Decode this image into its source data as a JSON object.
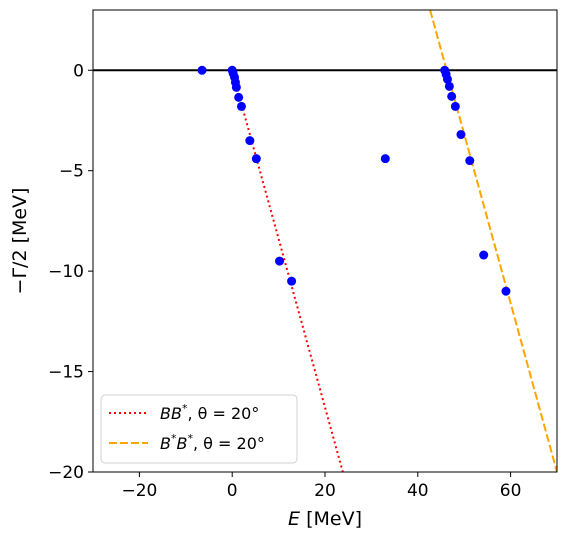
{
  "chart_data": {
    "type": "scatter",
    "xlabel": "E [MeV]",
    "ylabel": "−Γ/2 [MeV]",
    "xlim": [
      -30,
      70
    ],
    "ylim": [
      -20,
      3
    ],
    "xticks": [
      -20,
      0,
      20,
      40,
      60
    ],
    "yticks": [
      0,
      -5,
      -10,
      -15,
      -20
    ],
    "xtick_labels": [
      "−20",
      "0",
      "20",
      "40",
      "60"
    ],
    "ytick_labels": [
      "0",
      "−5",
      "−10",
      "−15",
      "−20"
    ],
    "grid": false,
    "legend_position": "lower-left",
    "zero_line": {
      "y": 0,
      "color": "#000000"
    },
    "points": {
      "color": "#0000ff",
      "x": [
        -6.5,
        0,
        0.2,
        0.5,
        0.7,
        0.9,
        1.4,
        2.0,
        3.8,
        5.2,
        10.2,
        12.8,
        33.0,
        45.8,
        46.1,
        46.4,
        46.8,
        47.3,
        48.1,
        49.3,
        51.2,
        54.2,
        59.0
      ],
      "y": [
        0,
        0,
        -0.15,
        -0.35,
        -0.6,
        -0.85,
        -1.35,
        -1.8,
        -3.5,
        -4.4,
        -9.5,
        -10.5,
        -4.4,
        0,
        -0.2,
        -0.45,
        -0.8,
        -1.3,
        -1.8,
        -3.2,
        -4.5,
        -9.2,
        -11.0
      ]
    },
    "series": [
      {
        "name": "BB*, θ=20°",
        "legend_base": "BB",
        "legend_sup": "*",
        "legend_rest": ", θ = 20°",
        "style": "dotted",
        "color": "#ff0000",
        "x": [
          0,
          23.84
        ],
        "y": [
          0,
          -20
        ]
      },
      {
        "name": "B*B*, θ=20°",
        "legend_base": "B",
        "legend_sup": "*",
        "legend_mid": "B",
        "legend_sup2": "*",
        "legend_rest": ", θ = 20°",
        "style": "dashed",
        "color": "#ffa500",
        "x": [
          42.65,
          70
        ],
        "y": [
          3,
          -20
        ]
      }
    ]
  }
}
